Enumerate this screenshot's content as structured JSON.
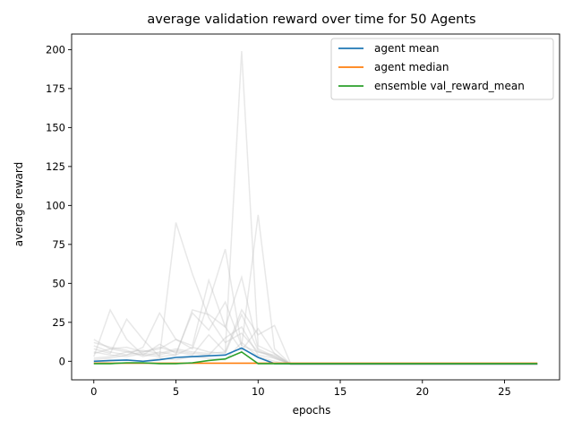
{
  "chart_data": {
    "type": "line",
    "title": "average validation reward over time for 50 Agents",
    "xlabel": "epochs",
    "ylabel": "average reward",
    "xlim": [
      -1.35,
      28.35
    ],
    "ylim": [
      -11.9,
      210
    ],
    "xticks": [
      0,
      5,
      10,
      15,
      20,
      25
    ],
    "yticks": [
      0,
      25,
      50,
      75,
      100,
      125,
      150,
      175,
      200
    ],
    "grid": false,
    "legend_position": "top-right",
    "x": [
      0,
      1,
      2,
      3,
      4,
      5,
      6,
      7,
      8,
      9,
      10,
      11,
      12,
      13,
      14,
      15,
      16,
      17,
      18,
      19,
      20,
      21,
      22,
      23,
      24,
      25,
      26,
      27
    ],
    "series": [
      {
        "name": "agent mean",
        "color": "#1f77b4",
        "values": [
          0,
          0.5,
          0.8,
          0,
          1,
          2.5,
          3,
          3.5,
          4,
          8.5,
          2.5,
          -1.5,
          -1.5,
          -1.5,
          -1.5,
          -1.5,
          -1.5,
          -1.5,
          -1.5,
          -1.5,
          -1.5,
          -1.5,
          -1.5,
          -1.5,
          -1.5,
          -1.5,
          -1.5,
          -1.5
        ]
      },
      {
        "name": "agent median",
        "color": "#ff7f0e",
        "values": [
          -1.2,
          -1.2,
          -1.2,
          -1.2,
          -1.2,
          -1.2,
          -1.2,
          -1.2,
          -1.2,
          -1.2,
          -1.2,
          -1.2,
          -1.2,
          -1.2,
          -1.2,
          -1.2,
          -1.2,
          -1.2,
          -1.2,
          -1.2,
          -1.2,
          -1.2,
          -1.2,
          -1.2,
          -1.2,
          -1.2,
          -1.2,
          -1.2
        ]
      },
      {
        "name": "ensemble val_reward_mean",
        "color": "#2ca02c",
        "values": [
          -1.5,
          -1.5,
          -1,
          -1,
          -1.5,
          -1.5,
          -1,
          0.5,
          1.5,
          6,
          -1.5,
          -1.5,
          -1.5,
          -1.5,
          -1.5,
          -1.5,
          -1.5,
          -1.5,
          -1.5,
          -1.5,
          -1.5,
          -1.5,
          -1.5,
          -1.5,
          -1.5,
          -1.5,
          -1.5,
          -1.5
        ]
      }
    ],
    "background_series_color": "#bdbdbd",
    "background_series": [
      [
        14,
        8,
        6,
        7,
        5,
        8,
        6,
        5,
        6,
        199,
        10,
        5,
        -2,
        -2,
        -2,
        -2,
        -2,
        -2,
        -2,
        -2,
        -2,
        -2,
        -2,
        -2,
        -2,
        -2,
        -2,
        -2
      ],
      [
        3,
        33,
        14,
        4,
        3,
        89,
        56,
        28,
        12,
        18,
        6,
        4,
        -2,
        -2,
        -2,
        -2,
        -2,
        -2,
        -2,
        -2,
        -2,
        -2,
        -2,
        -2,
        -2,
        -2,
        -2,
        -2
      ],
      [
        8,
        5,
        27,
        14,
        3,
        4,
        33,
        30,
        22,
        54,
        8,
        3,
        -2,
        -2,
        -2,
        -2,
        -2,
        -2,
        -2,
        -2,
        -2,
        -2,
        -2,
        -2,
        -2,
        -2,
        -2,
        -2
      ],
      [
        10,
        6,
        4,
        9,
        31,
        14,
        8,
        38,
        72,
        10,
        94,
        8,
        -2,
        -2,
        -2,
        -2,
        -2,
        -2,
        -2,
        -2,
        -2,
        -2,
        -2,
        -2,
        -2,
        -2,
        -2,
        -2
      ],
      [
        5,
        8,
        9,
        6,
        9,
        6,
        4,
        17,
        6,
        33,
        17,
        23,
        -2,
        -2,
        -2,
        -2,
        -2,
        -2,
        -2,
        -2,
        -2,
        -2,
        -2,
        -2,
        -2,
        -2,
        -2,
        -2
      ],
      [
        2,
        3,
        6,
        4,
        11,
        5,
        31,
        20,
        38,
        10,
        6,
        3,
        -2,
        -2,
        -2,
        -2,
        -2,
        -2,
        -2,
        -2,
        -2,
        -2,
        -2,
        -2,
        -2,
        -2,
        -2,
        -2
      ],
      [
        6,
        4,
        3,
        5,
        4,
        7,
        5,
        4,
        15,
        22,
        4,
        2,
        -2,
        -2,
        -2,
        -2,
        -2,
        -2,
        -2,
        -2,
        -2,
        -2,
        -2,
        -2,
        -2,
        -2,
        -2,
        -2
      ],
      [
        1,
        2,
        4,
        6,
        8,
        14,
        10,
        52,
        22,
        7,
        21,
        5,
        -2,
        -2,
        -2,
        -2,
        -2,
        -2,
        -2,
        -2,
        -2,
        -2,
        -2,
        -2,
        -2,
        -2,
        -2,
        -2
      ],
      [
        -1,
        0,
        1,
        0,
        2,
        1,
        3,
        2,
        1,
        12,
        3,
        0,
        -2,
        -2,
        -2,
        -2,
        -2,
        -2,
        -2,
        -2,
        -2,
        -2,
        -2,
        -2,
        -2,
        -2,
        -2,
        -2
      ],
      [
        12,
        9,
        7,
        3,
        6,
        4,
        9,
        6,
        5,
        30,
        7,
        2,
        -2,
        -2,
        -2,
        -2,
        -2,
        -2,
        -2,
        -2,
        -2,
        -2,
        -2,
        -2,
        -2,
        -2,
        -2,
        -2
      ]
    ]
  }
}
